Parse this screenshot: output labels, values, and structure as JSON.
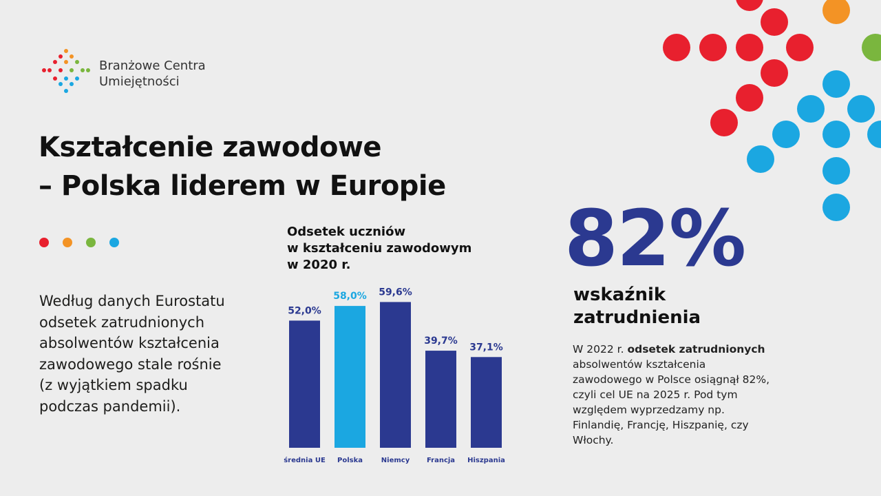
{
  "logo": {
    "lines": [
      "Branżowe Centra",
      "Umiejętności"
    ]
  },
  "title": {
    "lines": [
      "Kształcenie zawodowe",
      "– Polska liderem w Europie"
    ]
  },
  "left_text": {
    "lines": [
      "Według danych Eurostatu",
      "odsetek zatrudnionych",
      "absolwentów kształcenia",
      "zawodowego stale rośnie",
      "(z wyjątkiem spadku",
      "podczas pandemii)."
    ]
  },
  "chart_data": {
    "type": "bar",
    "title": [
      "Odsetek uczniów",
      "w kształceniu zawodowym",
      "w 2020 r."
    ],
    "categories": [
      "średnia UE",
      "Polska",
      "Niemcy",
      "Francja",
      "Hiszpania"
    ],
    "values": [
      52.0,
      58.0,
      59.6,
      39.7,
      37.1
    ],
    "value_labels": [
      "52,0%",
      "58,0%",
      "59,6%",
      "39,7%",
      "37,1%"
    ],
    "colors": [
      "#2b3990",
      "#1ba7e1",
      "#2b3990",
      "#2b3990",
      "#2b3990"
    ],
    "label_colors": [
      "#2b3990",
      "#1ba7e1",
      "#2b3990",
      "#2b3990",
      "#2b3990"
    ]
  },
  "highlight": {
    "value": "82%",
    "label": [
      "wskaźnik",
      "zatrudnienia"
    ]
  },
  "right_text": {
    "lead": "W 2022 r.",
    "bold": "odsetek zatrudnionych",
    "rest": "absolwentów kształcenia zawodowego w Polsce osiągnął 82%, czyli cel UE na 2025 r. Pod tym względem wyprzedzamy np. Finlandię, Francję, Hiszpanię, czy Włochy."
  }
}
